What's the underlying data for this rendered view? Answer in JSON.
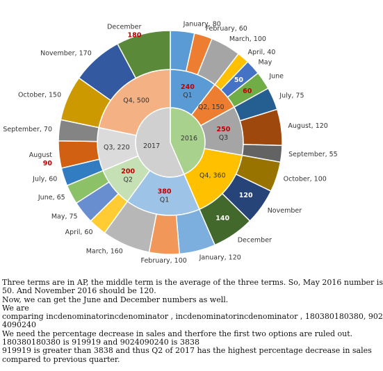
{
  "chart_data": {
    "type": "sunburst",
    "series": [
      {
        "name": "2016",
        "color": "#a9d18e",
        "quarters": [
          {
            "label": "Q1",
            "value_label": "240",
            "value": 240,
            "color": "#5b9bd5",
            "months": [
              {
                "label": "January, 80",
                "value": 80,
                "color": "#5b9bd5"
              },
              {
                "label": "February, 60",
                "value": 60,
                "color": "#ed7d31"
              },
              {
                "label": "March, 100",
                "value": 100,
                "color": "#a5a5a5"
              }
            ]
          },
          {
            "label": "Q2, 150",
            "value": 150,
            "color": "#ed7d31",
            "months": [
              {
                "label": "April, 40",
                "value": 40,
                "color": "#ffc000"
              },
              {
                "label": "May",
                "value_label": "50",
                "value_label_position": "inside",
                "value_label_color": "#ffffff",
                "value": 50,
                "color": "#4472c4"
              },
              {
                "label": "June",
                "value_label": "60",
                "value_label_position": "inside",
                "value_label_color": "#c00000",
                "value": 60,
                "color": "#70ad47"
              }
            ]
          },
          {
            "label": "Q3",
            "value_label": "250",
            "value": 250,
            "color": "#a5a5a5",
            "months": [
              {
                "label": "July, 75",
                "value": 75,
                "color": "#255e91"
              },
              {
                "label": "August, 120",
                "value": 120,
                "color": "#9e480e"
              },
              {
                "label": "September, 55",
                "value": 55,
                "color": "#636363"
              }
            ]
          },
          {
            "label": "Q4, 360",
            "value": 360,
            "color": "#ffc000",
            "months": [
              {
                "label": "October, 100",
                "value": 100,
                "color": "#997300"
              },
              {
                "label": "November",
                "value_label": "120",
                "value_label_position": "inside",
                "value_label_color": "#ffffff",
                "value": 120,
                "color": "#264478"
              },
              {
                "label": "December",
                "value_label": "140",
                "value_label_position": "inside",
                "value_label_color": "#ffffff",
                "value": 140,
                "color": "#43682b"
              }
            ]
          }
        ]
      },
      {
        "name": "2017",
        "color": "#d0d0d0",
        "quarters": [
          {
            "label": "Q1",
            "value_label": "380",
            "value": 380,
            "color": "#9dc3e6",
            "months": [
              {
                "label": "January, 120",
                "value": 120,
                "color": "#7cafdd"
              },
              {
                "label": "February, 100",
                "value": 100,
                "color": "#f1975a"
              },
              {
                "label": "March, 160",
                "value": 160,
                "color": "#b7b7b7"
              }
            ]
          },
          {
            "label": "Q2",
            "value_label": "200",
            "value": 200,
            "color": "#c5e0b4",
            "months": [
              {
                "label": "April, 60",
                "value": 60,
                "color": "#ffcd33"
              },
              {
                "label": "May, 75",
                "value": 75,
                "color": "#698ed0"
              },
              {
                "label": "June, 65",
                "value": 65,
                "color": "#8cc168"
              }
            ]
          },
          {
            "label": "Q3, 220",
            "value": 220,
            "color": "#dbdbdb",
            "months": [
              {
                "label": "July, 60",
                "value": 60,
                "color": "#327dc2"
              },
              {
                "label": "August",
                "value_label": "90",
                "value_label_position": "below",
                "value_label_color": "#c00000",
                "value": 90,
                "color": "#d26012"
              },
              {
                "label": "September, 70",
                "value": 70,
                "color": "#848484"
              }
            ]
          },
          {
            "label": "Q4, 500",
            "value": 500,
            "color": "#f4b183",
            "months": [
              {
                "label": "October, 150",
                "value": 150,
                "color": "#cc9a00"
              },
              {
                "label": "November, 170",
                "value": 170,
                "color": "#335aa1"
              },
              {
                "label": "December",
                "value_label": "180",
                "value_label_position": "below",
                "value_label_color": "#c00000",
                "value": 180,
                "color": "#5a8a39"
              }
            ]
          }
        ]
      }
    ]
  },
  "text": {
    "lines": [
      "Three terms are in AP, the middle term is the average of the three terms. So, May 2016 number is",
      "50. And November 2016 should be 120.",
      "Now, we can get the June and December numbers as well.",
      "We are",
      "comparing incdenominatorincdenominator , incdenominatorincdenominator , 180380180380, 902",
      "4090240",
      "We need the percentage decrease in sales and therfore the first two options are ruled out.",
      "180380180380 is 919919 and 9024090240 is 3838",
      "919919 is greater than 3838 and thus Q2 of 2017 has the highest percentage decrease in sales",
      "compared to previous quarter."
    ]
  }
}
